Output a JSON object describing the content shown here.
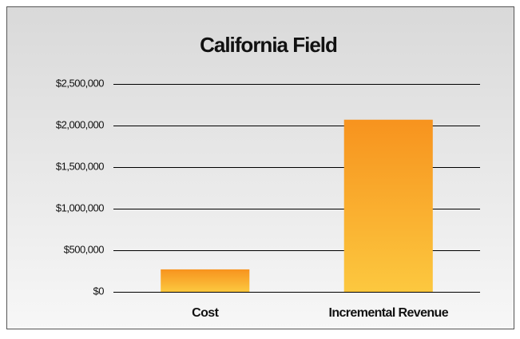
{
  "chart_data": {
    "type": "bar",
    "title": "California Field",
    "categories": [
      "Cost",
      "Incremental Revenue"
    ],
    "values": [
      270000,
      2070000
    ],
    "color": [
      "#f7931e",
      "#fcc83f"
    ],
    "ylim": [
      0,
      2500000
    ],
    "yticks": [
      {
        "value": 0,
        "label": "$0"
      },
      {
        "value": 500000,
        "label": "$500,000"
      },
      {
        "value": 1000000,
        "label": "$1,000,000"
      },
      {
        "value": 1500000,
        "label": "$1,500,000"
      },
      {
        "value": 2000000,
        "label": "$2,000,000"
      },
      {
        "value": 2500000,
        "label": "$2,500,000"
      }
    ],
    "grid": true
  }
}
